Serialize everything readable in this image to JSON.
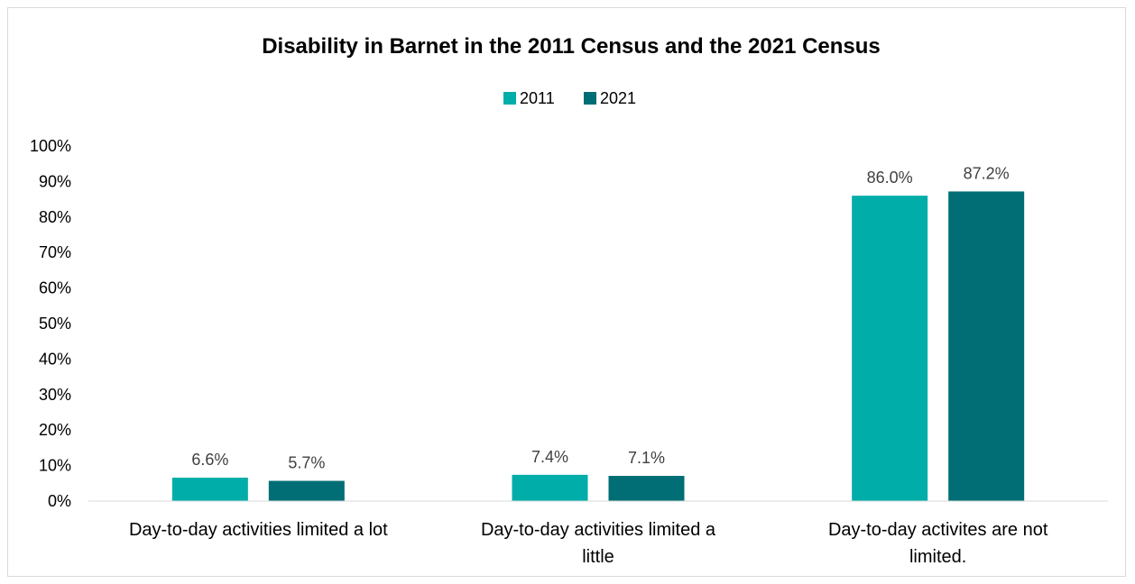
{
  "chart_data": {
    "type": "bar",
    "title": "Disability in Barnet in the 2011 Census and the 2021 Census",
    "categories": [
      [
        "Day-to-day activities limited a lot"
      ],
      [
        "Day-to-day activities limited a",
        "little"
      ],
      [
        "Day-to-day activites are not",
        "limited."
      ]
    ],
    "series": [
      {
        "name": "2011",
        "color": "#00ADA9",
        "values": [
          6.6,
          7.4,
          86.0
        ],
        "labels": [
          "6.6%",
          "7.4%",
          "86.0%"
        ]
      },
      {
        "name": "2021",
        "color": "#006E74",
        "values": [
          5.7,
          7.1,
          87.2
        ],
        "labels": [
          "5.7%",
          "7.1%",
          "87.2%"
        ]
      }
    ],
    "ylim": [
      0,
      100
    ],
    "yticks": [
      "0%",
      "10%",
      "20%",
      "30%",
      "40%",
      "50%",
      "60%",
      "70%",
      "80%",
      "90%",
      "100%"
    ],
    "xlabel": "",
    "ylabel": "",
    "legend": "top",
    "grid": false
  }
}
